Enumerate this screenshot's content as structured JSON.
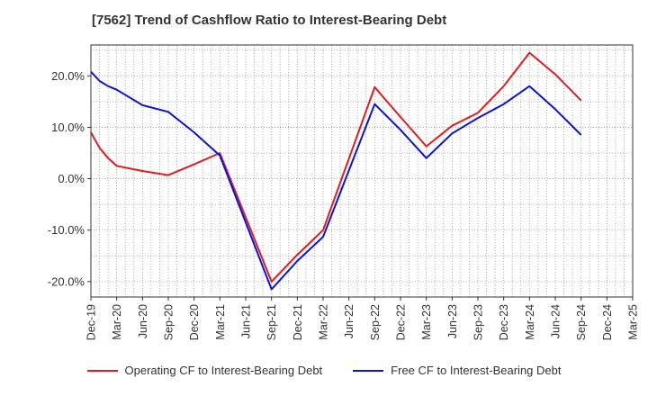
{
  "title": "[7562]  Trend of Cashflow Ratio to Interest-Bearing Debt",
  "colors": {
    "operating": "#e31a1c",
    "free": "#0a12d6",
    "grid": "#9a9a9a",
    "axis": "#333333"
  },
  "chart_data": {
    "type": "line",
    "title": "[7562]  Trend of Cashflow Ratio to Interest-Bearing Debt",
    "xlabel": "",
    "ylabel": "",
    "ylim": [
      -23,
      26
    ],
    "yticks": [
      -20,
      -10,
      0,
      10,
      20
    ],
    "ytick_labels": [
      "-20.0%",
      "-10.0%",
      "0.0%",
      "10.0%",
      "20.0%"
    ],
    "x_start": "Dec-19",
    "x_end": "Mar-25",
    "xtick_labels": [
      "Dec-19",
      "Mar-20",
      "Jun-20",
      "Sep-20",
      "Dec-20",
      "Mar-21",
      "Jun-21",
      "Sep-21",
      "Dec-21",
      "Mar-22",
      "Jun-22",
      "Sep-22",
      "Dec-22",
      "Mar-23",
      "Jun-23",
      "Sep-23",
      "Dec-23",
      "Mar-24",
      "Jun-24",
      "Sep-24",
      "Dec-24",
      "Mar-25"
    ],
    "grid": true,
    "legend_position": "bottom",
    "series": [
      {
        "name": "Operating CF to Interest-Bearing Debt",
        "color": "#e31a1c",
        "points": [
          [
            "Dec-19",
            9.0
          ],
          [
            "Jan-20",
            6.0
          ],
          [
            "Feb-20",
            4.0
          ],
          [
            "Mar-20",
            2.5
          ],
          [
            "Jun-20",
            1.5
          ],
          [
            "Sep-20",
            0.7
          ],
          [
            "Dec-20",
            2.8
          ],
          [
            "Mar-21",
            5.0
          ],
          [
            "Sep-21",
            -20.0
          ],
          [
            "Dec-21",
            -14.8
          ],
          [
            "Mar-22",
            -10.0
          ],
          [
            "Sep-22",
            17.8
          ],
          [
            "Dec-22",
            12.0
          ],
          [
            "Mar-23",
            6.3
          ],
          [
            "Jun-23",
            10.3
          ],
          [
            "Sep-23",
            12.8
          ],
          [
            "Dec-23",
            18.0
          ],
          [
            "Mar-24",
            24.5
          ],
          [
            "Jun-24",
            20.3
          ],
          [
            "Sep-24",
            15.2
          ]
        ]
      },
      {
        "name": "Free CF to Interest-Bearing Debt",
        "color": "#0a12d6",
        "points": [
          [
            "Dec-19",
            20.8
          ],
          [
            "Jan-20",
            19.0
          ],
          [
            "Feb-20",
            18.0
          ],
          [
            "Mar-20",
            17.3
          ],
          [
            "Jun-20",
            14.3
          ],
          [
            "Sep-20",
            13.0
          ],
          [
            "Dec-20",
            9.0
          ],
          [
            "Mar-21",
            4.5
          ],
          [
            "Sep-21",
            -21.5
          ],
          [
            "Dec-21",
            -16.0
          ],
          [
            "Mar-22",
            -11.3
          ],
          [
            "Sep-22",
            14.5
          ],
          [
            "Dec-22",
            9.5
          ],
          [
            "Mar-23",
            4.0
          ],
          [
            "Jun-23",
            8.8
          ],
          [
            "Sep-23",
            11.8
          ],
          [
            "Dec-23",
            14.5
          ],
          [
            "Mar-24",
            18.0
          ],
          [
            "Jun-24",
            13.5
          ],
          [
            "Sep-24",
            8.5
          ]
        ]
      }
    ]
  }
}
